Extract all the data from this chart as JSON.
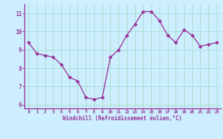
{
  "x": [
    0,
    1,
    2,
    3,
    4,
    5,
    6,
    7,
    8,
    9,
    10,
    11,
    12,
    13,
    14,
    15,
    16,
    17,
    18,
    19,
    20,
    21,
    22,
    23
  ],
  "y": [
    9.4,
    8.8,
    8.7,
    8.6,
    8.2,
    7.5,
    7.3,
    6.4,
    6.3,
    6.4,
    8.6,
    9.0,
    9.8,
    10.4,
    11.1,
    11.1,
    10.6,
    9.8,
    9.4,
    10.1,
    9.8,
    9.2,
    9.3,
    9.4
  ],
  "line_color": "#993399",
  "marker": "D",
  "markersize": 2.5,
  "linewidth": 1.0,
  "bg_color": "#cceeff",
  "grid_color": "#aaddcc",
  "xlabel": "Windchill (Refroidissement éolien,°C)",
  "xlabel_color": "#993399",
  "tick_color": "#993399",
  "spine_color": "#993399",
  "xlim": [
    -0.5,
    23.5
  ],
  "ylim": [
    5.8,
    11.5
  ],
  "yticks": [
    6,
    7,
    8,
    9,
    10,
    11
  ],
  "xticks": [
    0,
    1,
    2,
    3,
    4,
    5,
    6,
    7,
    8,
    9,
    10,
    11,
    12,
    13,
    14,
    15,
    16,
    17,
    18,
    19,
    20,
    21,
    22,
    23
  ]
}
